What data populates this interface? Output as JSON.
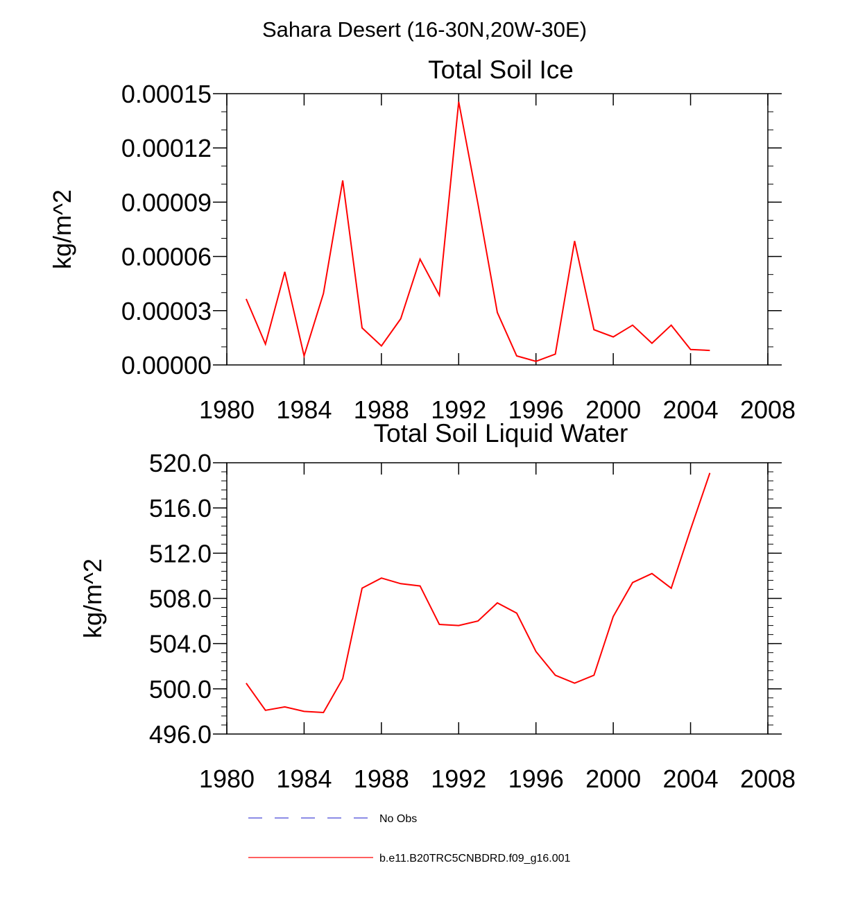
{
  "figure": {
    "title": "Sahara Desert (16-30N,20W-30E)"
  },
  "legend": {
    "entries": [
      {
        "label": "No Obs",
        "color": "#6666dd",
        "style": "dashed"
      },
      {
        "label": "b.e11.B20TRC5CNBDRD.f09_g16.001",
        "color": "#ff0000",
        "style": "solid"
      }
    ]
  },
  "chart_data": [
    {
      "type": "line",
      "title": "Total Soil Ice",
      "xlabel": "",
      "ylabel": "kg/m^2",
      "xlim": [
        1980,
        2008
      ],
      "ylim": [
        0,
        0.00015
      ],
      "xticks": [
        1980,
        1984,
        1988,
        1992,
        1996,
        2000,
        2004,
        2008
      ],
      "xtick_labels": [
        "1980",
        "1984",
        "1988",
        "1992",
        "1996",
        "2000",
        "2004",
        "2008"
      ],
      "yticks": [
        0,
        3e-05,
        6e-05,
        9e-05,
        0.00012,
        0.00015
      ],
      "ytick_labels": [
        "0.00000",
        "0.00003",
        "0.00006",
        "0.00009",
        "0.00012",
        "0.00015"
      ],
      "y_minor_step": 1e-05,
      "grid": false,
      "series": [
        {
          "name": "b.e11.B20TRC5CNBDRD.f09_g16.001",
          "color": "#ff0000",
          "x": [
            1981,
            1982,
            1983,
            1984,
            1985,
            1986,
            1987,
            1988,
            1989,
            1990,
            1991,
            1992,
            1993,
            1994,
            1995,
            1996,
            1997,
            1998,
            1999,
            2000,
            2001,
            2002,
            2003,
            2004,
            2005
          ],
          "y": [
            3.65e-05,
            1.15e-05,
            5.15e-05,
            5e-06,
            3.95e-05,
            0.000102,
            2.05e-05,
            1.05e-05,
            2.55e-05,
            5.85e-05,
            3.85e-05,
            0.0001455,
            8.9e-05,
            2.9e-05,
            5e-06,
            2e-06,
            6e-06,
            6.85e-05,
            1.95e-05,
            1.55e-05,
            2.2e-05,
            1.2e-05,
            2.2e-05,
            8.5e-06,
            8e-06
          ]
        }
      ]
    },
    {
      "type": "line",
      "title": "Total Soil Liquid Water",
      "xlabel": "",
      "ylabel": "kg/m^2",
      "xlim": [
        1980,
        2008
      ],
      "ylim": [
        496,
        520
      ],
      "xticks": [
        1980,
        1984,
        1988,
        1992,
        1996,
        2000,
        2004,
        2008
      ],
      "xtick_labels": [
        "1980",
        "1984",
        "1988",
        "1992",
        "1996",
        "2000",
        "2004",
        "2008"
      ],
      "yticks": [
        496,
        500,
        504,
        508,
        512,
        516,
        520
      ],
      "ytick_labels": [
        "496.0",
        "500.0",
        "504.0",
        "508.0",
        "512.0",
        "516.0",
        "520.0"
      ],
      "y_minor_step": 0.8,
      "grid": false,
      "series": [
        {
          "name": "b.e11.B20TRC5CNBDRD.f09_g16.001",
          "color": "#ff0000",
          "x": [
            1981,
            1982,
            1983,
            1984,
            1985,
            1986,
            1987,
            1988,
            1989,
            1990,
            1991,
            1992,
            1993,
            1994,
            1995,
            1996,
            1997,
            1998,
            1999,
            2000,
            2001,
            2002,
            2003,
            2004,
            2005
          ],
          "y": [
            500.5,
            498.1,
            498.4,
            498.0,
            497.9,
            500.9,
            508.9,
            509.8,
            509.3,
            509.1,
            505.7,
            505.6,
            506.0,
            507.6,
            506.7,
            503.3,
            501.2,
            500.5,
            501.2,
            506.4,
            509.4,
            510.2,
            508.9,
            514.1,
            519.1
          ]
        }
      ]
    }
  ]
}
